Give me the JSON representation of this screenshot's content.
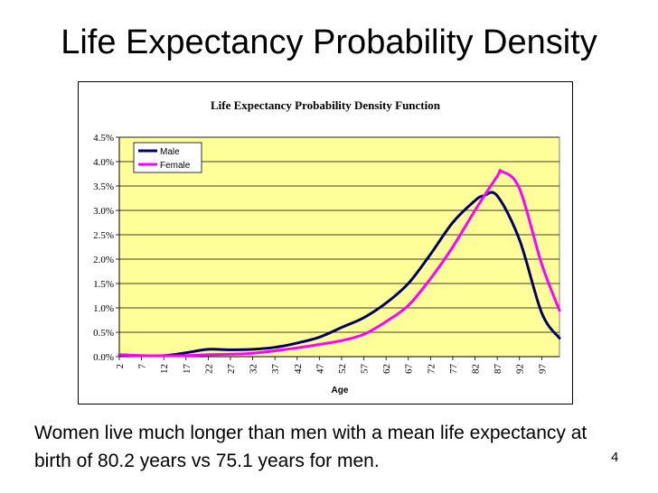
{
  "slide": {
    "title": "Life Expectancy Probability Density",
    "caption": "Women live much longer than men with a mean life expectancy at birth of 80.2 years vs 75.1 years for men.",
    "page_number": "4"
  },
  "chart_data": {
    "type": "line",
    "title": "Life Expectancy Probability Density Function",
    "xlabel": "Age",
    "ylabel": "",
    "x_tick_labels": [
      "2",
      "7",
      "12",
      "17",
      "22",
      "27",
      "32",
      "37",
      "42",
      "47",
      "52",
      "57",
      "62",
      "67",
      "72",
      "77",
      "82",
      "87",
      "92",
      "97"
    ],
    "y_tick_labels": [
      "0.0%",
      "0.5%",
      "1.0%",
      "1.5%",
      "2.0%",
      "2.5%",
      "3.0%",
      "3.5%",
      "4.0%",
      "4.5%"
    ],
    "xlim": [
      2,
      101
    ],
    "ylim": [
      0,
      4.5
    ],
    "grid": "horizontal",
    "legend_position": "top-left",
    "plot_background": "#ffff99",
    "series": [
      {
        "name": "Male",
        "color": "#000066",
        "x": [
          2,
          7,
          12,
          17,
          22,
          27,
          32,
          37,
          42,
          47,
          52,
          57,
          62,
          67,
          72,
          77,
          82,
          84,
          87,
          92,
          97,
          101
        ],
        "y": [
          0.04,
          0.02,
          0.02,
          0.08,
          0.15,
          0.14,
          0.15,
          0.19,
          0.28,
          0.4,
          0.6,
          0.8,
          1.1,
          1.5,
          2.1,
          2.75,
          3.2,
          3.3,
          3.3,
          2.4,
          0.9,
          0.38
        ]
      },
      {
        "name": "Female",
        "color": "#ff00ff",
        "x": [
          2,
          7,
          12,
          17,
          22,
          27,
          32,
          37,
          42,
          47,
          52,
          57,
          62,
          67,
          72,
          77,
          82,
          87,
          88,
          92,
          97,
          101
        ],
        "y": [
          0.04,
          0.02,
          0.02,
          0.02,
          0.04,
          0.05,
          0.07,
          0.12,
          0.18,
          0.25,
          0.33,
          0.46,
          0.72,
          1.05,
          1.6,
          2.25,
          3.0,
          3.7,
          3.8,
          3.45,
          1.9,
          0.95
        ]
      }
    ]
  }
}
